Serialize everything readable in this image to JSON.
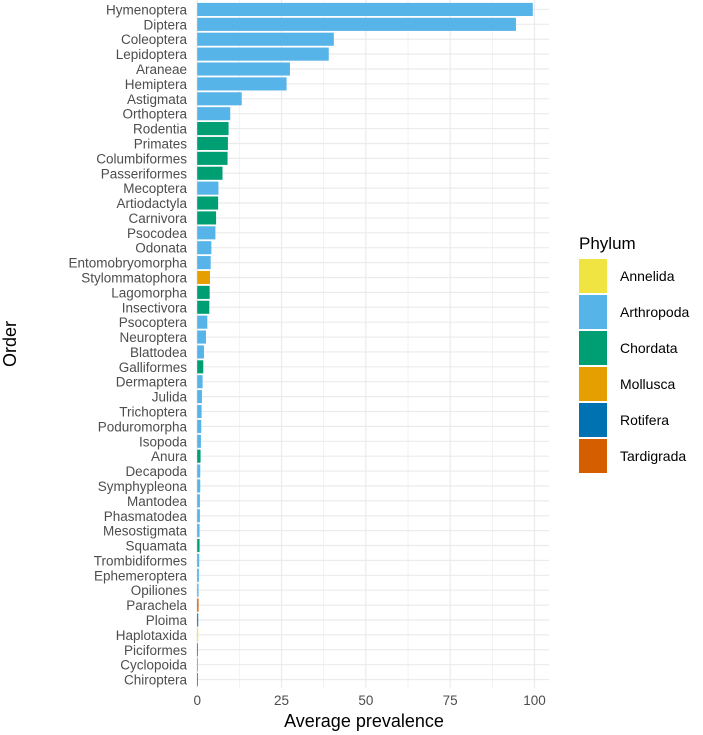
{
  "chart_data": {
    "type": "bar",
    "orientation": "horizontal",
    "title": "",
    "xlabel": "Average prevalence",
    "ylabel": "Order",
    "xlim": [
      0,
      100
    ],
    "xticks": [
      "0",
      "25",
      "50",
      "75",
      "100"
    ],
    "grid": true,
    "legend": {
      "title": "Phylum",
      "placement": "right",
      "entries": [
        {
          "name": "Annelida",
          "color": "#F0E442"
        },
        {
          "name": "Arthropoda",
          "color": "#56B4E9"
        },
        {
          "name": "Chordata",
          "color": "#009E73"
        },
        {
          "name": "Mollusca",
          "color": "#E69F00"
        },
        {
          "name": "Rotifera",
          "color": "#0072B2"
        },
        {
          "name": "Tardigrada",
          "color": "#D55E00"
        }
      ]
    },
    "bars": [
      {
        "order": "Hymenoptera",
        "phylum": "Arthropoda",
        "value": 99.5
      },
      {
        "order": "Diptera",
        "phylum": "Arthropoda",
        "value": 94.5
      },
      {
        "order": "Coleoptera",
        "phylum": "Arthropoda",
        "value": 40.5
      },
      {
        "order": "Lepidoptera",
        "phylum": "Arthropoda",
        "value": 39
      },
      {
        "order": "Araneae",
        "phylum": "Arthropoda",
        "value": 27.5
      },
      {
        "order": "Hemiptera",
        "phylum": "Arthropoda",
        "value": 26.5
      },
      {
        "order": "Astigmata",
        "phylum": "Arthropoda",
        "value": 13.2
      },
      {
        "order": "Orthoptera",
        "phylum": "Arthropoda",
        "value": 9.8
      },
      {
        "order": "Rodentia",
        "phylum": "Chordata",
        "value": 9.3
      },
      {
        "order": "Primates",
        "phylum": "Chordata",
        "value": 9.1
      },
      {
        "order": "Columbiformes",
        "phylum": "Chordata",
        "value": 9
      },
      {
        "order": "Passeriformes",
        "phylum": "Chordata",
        "value": 7.5
      },
      {
        "order": "Mecoptera",
        "phylum": "Arthropoda",
        "value": 6.3
      },
      {
        "order": "Artiodactyla",
        "phylum": "Chordata",
        "value": 6.2
      },
      {
        "order": "Carnivora",
        "phylum": "Chordata",
        "value": 5.6
      },
      {
        "order": "Psocodea",
        "phylum": "Arthropoda",
        "value": 5.4
      },
      {
        "order": "Odonata",
        "phylum": "Arthropoda",
        "value": 4.2
      },
      {
        "order": "Entomobryomorpha",
        "phylum": "Arthropoda",
        "value": 4
      },
      {
        "order": "Stylommatophora",
        "phylum": "Mollusca",
        "value": 3.8
      },
      {
        "order": "Lagomorpha",
        "phylum": "Chordata",
        "value": 3.7
      },
      {
        "order": "Insectivora",
        "phylum": "Chordata",
        "value": 3.6
      },
      {
        "order": "Psocoptera",
        "phylum": "Arthropoda",
        "value": 3
      },
      {
        "order": "Neuroptera",
        "phylum": "Arthropoda",
        "value": 2.6
      },
      {
        "order": "Blattodea",
        "phylum": "Arthropoda",
        "value": 2
      },
      {
        "order": "Galliformes",
        "phylum": "Chordata",
        "value": 1.8
      },
      {
        "order": "Dermaptera",
        "phylum": "Arthropoda",
        "value": 1.6
      },
      {
        "order": "Julida",
        "phylum": "Arthropoda",
        "value": 1.4
      },
      {
        "order": "Trichoptera",
        "phylum": "Arthropoda",
        "value": 1.3
      },
      {
        "order": "Poduromorpha",
        "phylum": "Arthropoda",
        "value": 1.2
      },
      {
        "order": "Isopoda",
        "phylum": "Arthropoda",
        "value": 1.1
      },
      {
        "order": "Anura",
        "phylum": "Chordata",
        "value": 1
      },
      {
        "order": "Decapoda",
        "phylum": "Arthropoda",
        "value": 0.9
      },
      {
        "order": "Symphypleona",
        "phylum": "Arthropoda",
        "value": 0.9
      },
      {
        "order": "Mantodea",
        "phylum": "Arthropoda",
        "value": 0.8
      },
      {
        "order": "Phasmatodea",
        "phylum": "Arthropoda",
        "value": 0.8
      },
      {
        "order": "Mesostigmata",
        "phylum": "Arthropoda",
        "value": 0.7
      },
      {
        "order": "Squamata",
        "phylum": "Chordata",
        "value": 0.7
      },
      {
        "order": "Trombidiformes",
        "phylum": "Arthropoda",
        "value": 0.6
      },
      {
        "order": "Ephemeroptera",
        "phylum": "Arthropoda",
        "value": 0.5
      },
      {
        "order": "Opiliones",
        "phylum": "Arthropoda",
        "value": 0.4
      },
      {
        "order": "Parachela",
        "phylum": "Tardigrada",
        "value": 0.4
      },
      {
        "order": "Ploima",
        "phylum": "Rotifera",
        "value": 0.3
      },
      {
        "order": "Haplotaxida",
        "phylum": "Annelida",
        "value": 0.3
      },
      {
        "order": "Piciformes",
        "phylum": "Chordata",
        "value": 0.2
      },
      {
        "order": "Cyclopoida",
        "phylum": "Arthropoda",
        "value": 0.2
      },
      {
        "order": "Chiroptera",
        "phylum": "Chordata",
        "value": 0.1
      }
    ]
  }
}
